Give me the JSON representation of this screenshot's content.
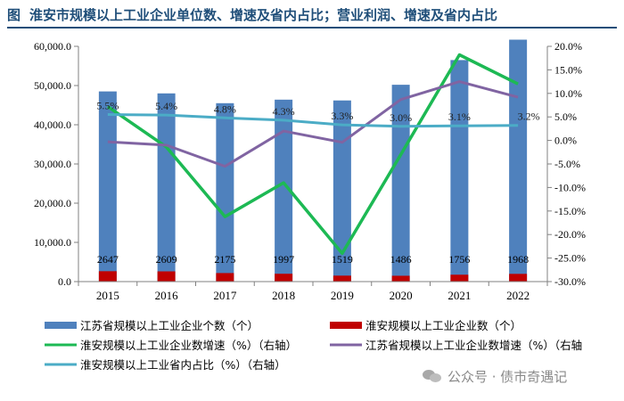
{
  "header": {
    "figure_label": "图",
    "title": "淮安市规模以上工业企业单位数、增速及省内占比；营业利润、增速及省内占比"
  },
  "watermark": {
    "text": "公众号 · 债市奇遇记"
  },
  "chart_data": {
    "type": "bar+line",
    "categories": [
      "2015",
      "2016",
      "2017",
      "2018",
      "2019",
      "2020",
      "2021",
      "2022"
    ],
    "left_axis": {
      "min": 0,
      "max": 60000,
      "step": 10000,
      "tick_labels": [
        "0.0",
        "10,000.0",
        "20,000.0",
        "30,000.0",
        "40,000.0",
        "50,000.0",
        "60,000.0"
      ]
    },
    "right_axis": {
      "min": -30,
      "max": 20,
      "step": 5,
      "tick_labels": [
        "-30.0%",
        "-25.0%",
        "-20.0%",
        "-15.0%",
        "-10.0%",
        "-5.0%",
        "0.0%",
        "5.0%",
        "10.0%",
        "15.0%",
        "20.0%"
      ]
    },
    "series": [
      {
        "name": "江苏省规模以上工业企业个数（个）",
        "kind": "bar",
        "axis": "left",
        "color": "#4f81bd",
        "values": [
          48500,
          48000,
          45500,
          46400,
          46200,
          50200,
          56500,
          61700
        ]
      },
      {
        "name": "淮安规模以上工业企业数（个）",
        "kind": "bar",
        "axis": "left",
        "color": "#c00000",
        "values": [
          2647,
          2609,
          2175,
          1997,
          1519,
          1486,
          1756,
          1968
        ],
        "labels": [
          "2647",
          "2609",
          "2175",
          "1997",
          "1519",
          "1486",
          "1756",
          "1968"
        ]
      },
      {
        "name": "淮安规模以上工业企业数增速（%）（右轴）",
        "kind": "line",
        "axis": "right",
        "color": "#1db954",
        "values": [
          7.2,
          -1.4,
          -16.2,
          -9.0,
          -24.0,
          -3.0,
          18.2,
          12.0
        ]
      },
      {
        "name": "江苏省规模以上工业企业数增速（%）（右轴",
        "kind": "line",
        "axis": "right",
        "color": "#8064a2",
        "values": [
          -0.3,
          -1.0,
          -5.5,
          2.0,
          -0.4,
          8.7,
          12.5,
          9.2
        ]
      },
      {
        "name": "淮安规模以上工业省内占比（%）（右轴）",
        "kind": "line",
        "axis": "right",
        "color": "#4bacc6",
        "values": [
          5.5,
          5.4,
          4.8,
          4.3,
          3.3,
          3.0,
          3.1,
          3.2
        ],
        "labels": [
          "5.5%",
          "5.4%",
          "4.8%",
          "4.3%",
          "3.3%",
          "3.0%",
          "3.1%",
          "3.2%"
        ]
      }
    ],
    "legend_position": "bottom",
    "grid": false
  }
}
